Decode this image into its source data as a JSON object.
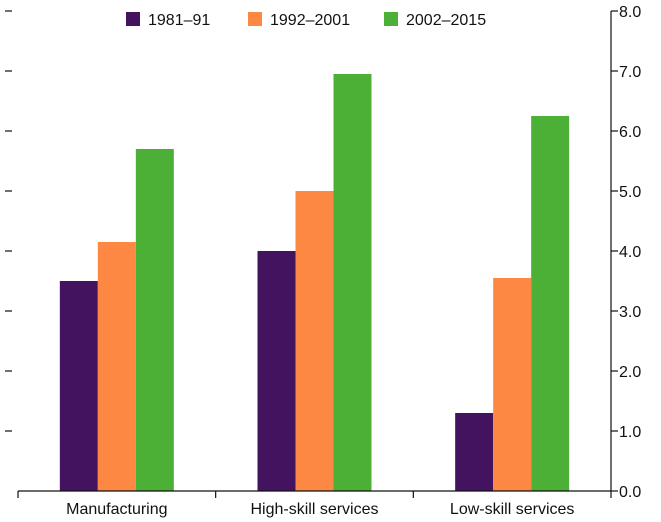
{
  "chart_data": {
    "type": "bar",
    "categories": [
      "Manufacturing",
      "High-skill services",
      "Low-skill services"
    ],
    "series": [
      {
        "name": "1981–91",
        "color": "#44135f",
        "values": [
          3.5,
          4.0,
          1.3
        ]
      },
      {
        "name": "1992–2001",
        "color": "#fc8843",
        "values": [
          4.15,
          5.0,
          3.55
        ]
      },
      {
        "name": "2002–2015",
        "color": "#4bb035",
        "values": [
          5.7,
          6.95,
          6.25
        ]
      }
    ],
    "ylim": [
      0,
      8
    ],
    "yticks": [
      "0.0",
      "1.0",
      "2.0",
      "3.0",
      "4.0",
      "5.0",
      "6.0",
      "7.0",
      "8.0"
    ],
    "legend_position": "top",
    "grid": false
  }
}
